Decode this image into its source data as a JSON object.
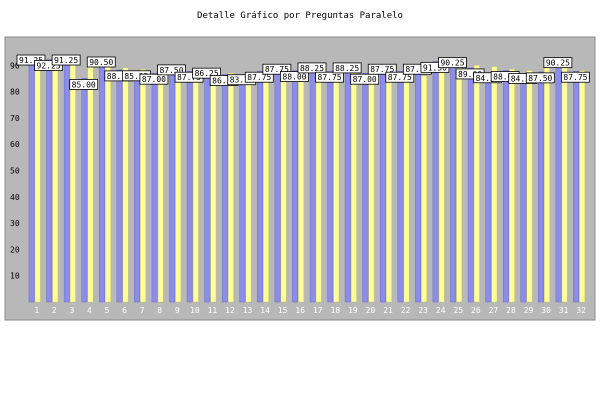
{
  "chart_data": {
    "type": "bar",
    "title": "Detalle Gráfico por Preguntas Paralelo",
    "xlabel": "",
    "ylabel": "",
    "ylim": [
      0,
      100
    ],
    "yticks": [
      10,
      20,
      30,
      40,
      50,
      60,
      70,
      80,
      90
    ],
    "categories": [
      "1",
      "2",
      "3",
      "4",
      "5",
      "6",
      "7",
      "8",
      "9",
      "10",
      "11",
      "12",
      "13",
      "14",
      "15",
      "16",
      "17",
      "18",
      "19",
      "20",
      "21",
      "22",
      "23",
      "24",
      "25",
      "26",
      "27",
      "28",
      "29",
      "30",
      "31",
      "32"
    ],
    "series": [
      {
        "values": [
          91.25,
          92.25,
          91.25,
          85.0,
          90.5,
          88.25,
          85.25,
          87.0,
          87.5,
          87.75,
          86.25,
          86.5,
          83.75,
          87.75,
          87.75,
          88.0,
          88.25,
          87.75,
          88.25,
          87.0,
          87.75,
          87.75,
          87.75,
          91.5,
          90.25,
          89.0,
          84.5,
          88.0,
          84.25,
          87.5,
          90.25,
          87.75
        ]
      },
      {
        "values": [
          92.0,
          91.5,
          91.0,
          90.0,
          89.5,
          89.0,
          88.5,
          88.0,
          88.0,
          87.5,
          87.0,
          87.0,
          86.5,
          88.0,
          88.5,
          88.5,
          88.0,
          87.5,
          88.0,
          87.5,
          87.0,
          87.5,
          86.0,
          88.5,
          90.5,
          90.0,
          89.5,
          88.5,
          88.0,
          89.5,
          89.0,
          88.0
        ]
      }
    ],
    "colors": {
      "series1": "#8c8cea",
      "series2": "#ffff99",
      "plot_bg": "#b8b8b8",
      "label_bg": "#ffffff"
    },
    "grid": false,
    "legend": "none"
  }
}
